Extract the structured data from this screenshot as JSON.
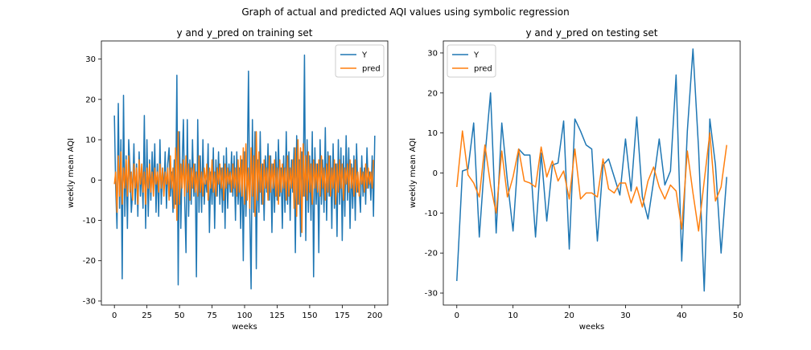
{
  "suptitle": "Graph of actual and predicted AQI values using symbolic regression",
  "colors": {
    "Y": "#1f77b4",
    "pred": "#ff7f0e",
    "axis": "#000000",
    "legend_border": "#cccccc"
  },
  "chart_data": [
    {
      "type": "line",
      "title": "y and y_pred on training set",
      "xlabel": "weeks",
      "ylabel": "weekly mean AQI",
      "xlim": [
        -10,
        210
      ],
      "ylim": [
        -31,
        34.5
      ],
      "xticks": [
        0,
        25,
        50,
        75,
        100,
        125,
        150,
        175,
        200
      ],
      "yticks": [
        -30,
        -20,
        -10,
        0,
        10,
        20,
        30
      ],
      "grid": false,
      "legend_position": "top-right",
      "series": [
        {
          "name": "Y",
          "color": "#1f77b4",
          "x_start": 0,
          "values": [
            16,
            -2,
            -12,
            19,
            -7,
            10,
            -24.5,
            21,
            -9,
            6,
            -12,
            10,
            3,
            -8,
            -3,
            9,
            -6,
            4,
            -9,
            7,
            -4,
            3,
            -7,
            16,
            -12,
            10,
            -9,
            5,
            -5,
            7,
            -3,
            9,
            -8,
            4,
            -9,
            10,
            -6,
            3,
            -3,
            7,
            -7,
            4,
            8,
            -4,
            2,
            -8,
            5,
            -6,
            26,
            -26,
            12,
            -12,
            3,
            15,
            -5,
            -18,
            15,
            -9,
            5,
            -6,
            10,
            -4,
            4,
            -24,
            15,
            -8,
            6,
            -8,
            10,
            -6,
            1,
            -3,
            9,
            -13,
            2,
            -6,
            8,
            -12,
            5,
            -4,
            7,
            -6,
            3,
            -8,
            6,
            -12,
            8,
            -7,
            4,
            -3,
            7,
            -4,
            6,
            -10,
            7,
            -6,
            3,
            -12,
            5,
            -20,
            7,
            -9,
            2,
            27,
            -8,
            -27,
            15,
            -8,
            12,
            -22,
            5,
            -8,
            12,
            -6,
            4,
            -10,
            6,
            -3,
            9,
            -5,
            6,
            -13,
            4,
            -8,
            7,
            -5,
            10,
            -4,
            3,
            -12,
            6,
            -8,
            12,
            -6,
            7,
            -10,
            5,
            -3,
            8,
            -18,
            11,
            -6,
            5,
            -14,
            7,
            -4,
            31,
            -15,
            10,
            -8,
            6,
            -10,
            12,
            -24,
            8,
            -6,
            4,
            -18,
            10,
            -6,
            5,
            -8,
            13,
            -10,
            7,
            -4,
            6,
            -12,
            9,
            -7,
            4,
            -14,
            10,
            -6,
            8,
            -15,
            6,
            -9,
            11,
            -5,
            8,
            -12,
            4,
            -7,
            6,
            -10,
            9,
            -3,
            -2,
            -8,
            6,
            -4,
            3,
            -6,
            8,
            -2,
            2,
            -5,
            6,
            -9,
            11
          ]
        },
        {
          "name": "pred",
          "color": "#ff7f0e",
          "x_start": 0,
          "values": [
            -1,
            2,
            -8,
            6,
            -4,
            7,
            -6,
            3,
            -2,
            5,
            -4,
            6,
            -3,
            2,
            -5,
            4,
            -2,
            3,
            -6,
            5,
            -1,
            4,
            -3,
            2,
            -6,
            3,
            -2,
            4,
            -3,
            2,
            -4,
            3,
            -1,
            2,
            -3,
            4,
            -2,
            3,
            -4,
            2,
            -1,
            3,
            -5,
            6,
            -2,
            3,
            -7,
            8,
            -10,
            12,
            -6,
            4,
            -2,
            5,
            -4,
            6,
            -3,
            4,
            -5,
            3,
            -2,
            4,
            -3,
            2,
            -4,
            6,
            -3,
            2,
            -4,
            3,
            -1,
            4,
            -5,
            3,
            -2,
            5,
            -3,
            2,
            -4,
            3,
            -1,
            4,
            -2,
            3,
            -5,
            4,
            -2,
            3,
            -1,
            2,
            -3,
            4,
            -2,
            3,
            -4,
            5,
            -3,
            6,
            -4,
            8,
            -6,
            9,
            -5,
            3,
            -7,
            8,
            -4,
            6,
            -9,
            12,
            -5,
            7,
            -3,
            4,
            -6,
            5,
            -2,
            3,
            -5,
            6,
            -3,
            4,
            -2,
            5,
            -4,
            3,
            -6,
            5,
            -3,
            4,
            -2,
            3,
            -5,
            6,
            -4,
            3,
            -2,
            5,
            -7,
            8,
            -9,
            10,
            -6,
            8,
            -13,
            9,
            -4,
            6,
            -5,
            7,
            -3,
            4,
            -6,
            5,
            -2,
            4,
            -3,
            5,
            -4,
            6,
            -2,
            3,
            -5,
            4,
            -3,
            6,
            -4,
            3,
            -2,
            5,
            -6,
            4,
            -3,
            5,
            -2,
            4,
            -5,
            3,
            -1,
            4,
            -3,
            5,
            -2,
            3,
            -4,
            5,
            -3,
            2,
            -4,
            3,
            -1,
            2,
            -3,
            4,
            -2,
            3,
            -1,
            2,
            -2,
            5
          ]
        }
      ]
    },
    {
      "type": "line",
      "title": "y and y_pred on testing set",
      "xlabel": "weeks",
      "ylabel": "weekly mean AQI",
      "xlim": [
        -2.4,
        50.4
      ],
      "ylim": [
        -33,
        33
      ],
      "xticks": [
        0,
        10,
        20,
        30,
        40,
        50
      ],
      "yticks": [
        -30,
        -20,
        -10,
        0,
        10,
        20,
        30
      ],
      "grid": false,
      "legend_position": "top-left",
      "series": [
        {
          "name": "Y",
          "color": "#1f77b4",
          "x_start": 0,
          "values": [
            -27,
            0.5,
            1,
            12.5,
            -16,
            4,
            20,
            -15,
            12.5,
            -2,
            -14.5,
            6,
            4.5,
            4.5,
            -16,
            5,
            -12,
            2,
            2.5,
            13,
            -19,
            13.5,
            10.5,
            7,
            6,
            -17,
            2,
            3.5,
            -1,
            -5.5,
            8.5,
            -4.5,
            14,
            -6,
            -11.5,
            -2,
            8.5,
            -3,
            0.5,
            24.5,
            -22,
            10.5,
            31,
            6,
            -29.5,
            13.5,
            2,
            -20,
            -1
          ]
        },
        {
          "name": "pred",
          "color": "#ff7f0e",
          "x_start": 0,
          "values": [
            -3.5,
            10.5,
            -0.5,
            -2.5,
            -6,
            7,
            -3,
            -10,
            5.5,
            -6,
            -1,
            6,
            -2,
            -2.5,
            -3.5,
            6.5,
            -1,
            3,
            -2,
            0.5,
            -6.5,
            6,
            -6.5,
            -5,
            -5,
            -6,
            3.5,
            -4,
            -5,
            -2.5,
            -2.5,
            -7.5,
            -3.5,
            -8.5,
            -2,
            1.5,
            -3.5,
            -6.5,
            -3,
            -4.5,
            -14,
            5.5,
            -5,
            -14.5,
            -2,
            10,
            -7,
            -3.5,
            7
          ]
        }
      ]
    }
  ]
}
